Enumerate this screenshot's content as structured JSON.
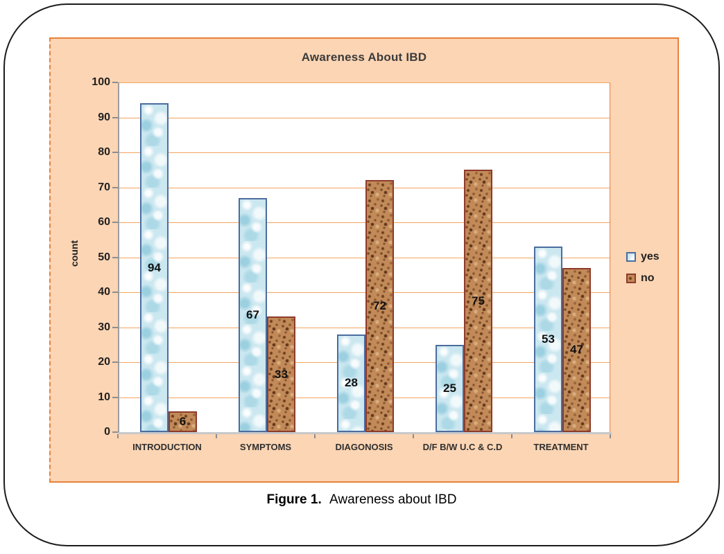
{
  "figure": {
    "caption_label": "Figure 1.",
    "caption_text": "Awareness about IBD"
  },
  "chart_data": {
    "type": "bar",
    "title": "Awareness About IBD",
    "xlabel": "",
    "ylabel": "count",
    "ylim": [
      0,
      100
    ],
    "yticks": [
      0,
      10,
      20,
      30,
      40,
      50,
      60,
      70,
      80,
      90,
      100
    ],
    "grid": true,
    "gridline_color": "#F3A45F",
    "legend_position": "right-outside",
    "categories": [
      "INTRODUCTION",
      "SYMPTOMS",
      "DIAGONOSIS",
      "D/F B/W U.C & C.D",
      "TREATMENT"
    ],
    "series": [
      {
        "name": "yes",
        "values": [
          94,
          67,
          28,
          25,
          53
        ],
        "fill": "#CBE7F0",
        "border": "#4B6C9E"
      },
      {
        "name": "no",
        "values": [
          6,
          33,
          72,
          75,
          47
        ],
        "fill": "#C18A58",
        "border": "#8E3A2B"
      }
    ],
    "data_labels": "center"
  },
  "colors": {
    "chart_background": "#FCD5B4",
    "chart_border": "#E9803B",
    "plot_background": "#FFFFFF",
    "axis_line": "#9B9CA0",
    "baseline": "#C7C8CA",
    "frame_border": "#1B1B1B",
    "text": "#1F1F1F"
  }
}
